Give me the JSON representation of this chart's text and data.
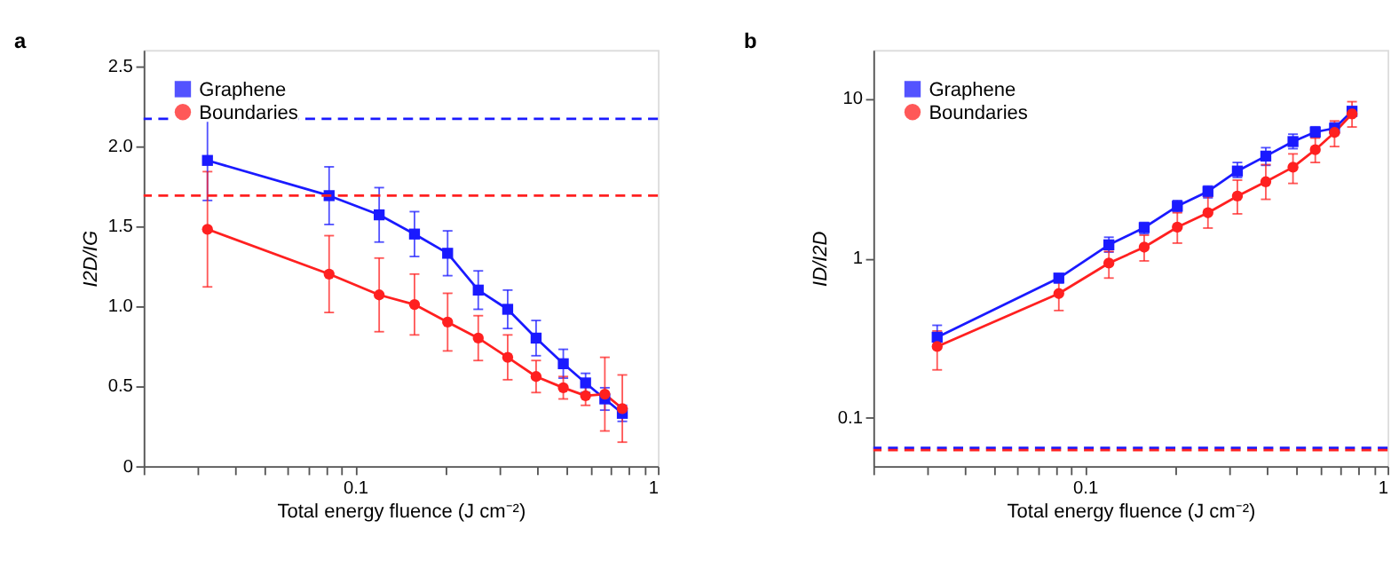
{
  "chart_data": [
    {
      "type": "line",
      "title": "a",
      "xlabel": "Total energy fluence (J cm⁻²)",
      "ylabel": "I2D/IG",
      "log": "x",
      "grid": false,
      "legend": "top left",
      "line_style": "solid",
      "x": [
        0.0325,
        0.082,
        0.12,
        0.157,
        0.202,
        0.255,
        0.319,
        0.396,
        0.487,
        0.577,
        0.668,
        0.763
      ],
      "xlim": [
        0.02,
        1
      ],
      "xticks": [
        {
          "value": 0.02,
          "label": null
        },
        {
          "value": 0.03,
          "label": null
        },
        {
          "value": 0.04,
          "label": null
        },
        {
          "value": 0.05,
          "label": null
        },
        {
          "value": 0.06,
          "label": null
        },
        {
          "value": 0.07,
          "label": null
        },
        {
          "value": 0.08,
          "label": null
        },
        {
          "value": 0.09,
          "label": null
        },
        0.1,
        {
          "value": 0.2,
          "label": null
        },
        {
          "value": 0.3,
          "label": null
        },
        {
          "value": 0.4,
          "label": null
        },
        {
          "value": 0.5,
          "label": null
        },
        {
          "value": 0.6,
          "label": null
        },
        {
          "value": 0.7,
          "label": null
        },
        {
          "value": 0.8,
          "label": null
        },
        {
          "value": 0.9,
          "label": null
        },
        1
      ],
      "ylim": [
        0,
        2.6
      ],
      "yticks": [
        0,
        0.5,
        {
          "value": 1,
          "label": "1.0"
        },
        1.5,
        {
          "value": 2,
          "label": "2.0"
        },
        2.5
      ],
      "series": [
        {
          "name": "Graphene",
          "color": "#1a1aff",
          "marker": "square",
          "values": [
            1.91,
            1.69,
            1.57,
            1.45,
            1.33,
            1.1,
            0.98,
            0.8,
            0.64,
            0.52,
            0.42,
            0.33
          ],
          "errors": [
            0.25,
            0.18,
            0.17,
            0.14,
            0.14,
            0.12,
            0.12,
            0.11,
            0.09,
            0.06,
            0.07,
            0.05
          ]
        },
        {
          "name": "Boundaries",
          "color": "#ff2020",
          "marker": "circle",
          "values": [
            1.48,
            1.2,
            1.07,
            1.01,
            0.9,
            0.8,
            0.68,
            0.56,
            0.49,
            0.44,
            0.45,
            0.36
          ],
          "errors": [
            0.36,
            0.24,
            0.23,
            0.19,
            0.18,
            0.14,
            0.14,
            0.1,
            0.07,
            0.06,
            0.23,
            0.21
          ]
        }
      ],
      "ref_lines": [
        {
          "axis": "y",
          "value": 2.17,
          "color": "#1a1aff",
          "line_style": "dashed"
        },
        {
          "axis": "y",
          "value": 1.69,
          "color": "#ff2020",
          "line_style": "dashed"
        }
      ]
    },
    {
      "type": "line",
      "title": "b",
      "xlabel": "Total energy fluence (J cm⁻²)",
      "ylabel": "ID/I2D",
      "log": "xy",
      "grid": false,
      "legend": "top left",
      "line_style": "solid",
      "x": [
        0.0325,
        0.082,
        0.12,
        0.157,
        0.202,
        0.255,
        0.319,
        0.396,
        0.487,
        0.577,
        0.668,
        0.763
      ],
      "xlim": [
        0.02,
        1
      ],
      "xticks": [
        {
          "value": 0.02,
          "label": null
        },
        {
          "value": 0.03,
          "label": null
        },
        {
          "value": 0.04,
          "label": null
        },
        {
          "value": 0.05,
          "label": null
        },
        {
          "value": 0.06,
          "label": null
        },
        {
          "value": 0.07,
          "label": null
        },
        {
          "value": 0.08,
          "label": null
        },
        {
          "value": 0.09,
          "label": null
        },
        0.1,
        {
          "value": 0.2,
          "label": null
        },
        {
          "value": 0.3,
          "label": null
        },
        {
          "value": 0.4,
          "label": null
        },
        {
          "value": 0.5,
          "label": null
        },
        {
          "value": 0.6,
          "label": null
        },
        {
          "value": 0.7,
          "label": null
        },
        {
          "value": 0.8,
          "label": null
        },
        {
          "value": 0.9,
          "label": null
        },
        1
      ],
      "ylim": [
        0.05,
        20
      ],
      "yticks": [
        0.1,
        1,
        10
      ],
      "series": [
        {
          "name": "Graphene",
          "color": "#1a1aff",
          "marker": "square",
          "values": [
            0.32,
            0.75,
            1.21,
            1.55,
            2.11,
            2.61,
            3.5,
            4.34,
            5.35,
            6.14,
            6.48,
            8.28
          ],
          "errors": [
            [
              0.28,
              0.38
            ],
            [
              0.7,
              0.79
            ],
            [
              1.09,
              1.35
            ],
            [
              1.42,
              1.67
            ],
            [
              1.95,
              2.29
            ],
            [
              2.38,
              2.82
            ],
            [
              3.19,
              3.96
            ],
            [
              3.8,
              4.9
            ],
            [
              4.83,
              5.95
            ],
            [
              5.68,
              6.62
            ],
            [
              6.0,
              7.0
            ],
            [
              7.7,
              8.8
            ]
          ]
        },
        {
          "name": "Boundaries",
          "color": "#ff2020",
          "marker": "circle",
          "values": [
            0.28,
            0.6,
            0.93,
            1.17,
            1.56,
            1.92,
            2.44,
            3.0,
            3.7,
            4.76,
            6.1,
            7.97
          ],
          "errors": [
            [
              0.2,
              0.35
            ],
            [
              0.47,
              0.71
            ],
            [
              0.75,
              1.1
            ],
            [
              0.96,
              1.39
            ],
            [
              1.24,
              1.92
            ],
            [
              1.54,
              2.42
            ],
            [
              1.89,
              3.07
            ],
            [
              2.33,
              3.84
            ],
            [
              2.93,
              4.48
            ],
            [
              3.96,
              5.63
            ],
            [
              4.98,
              7.2
            ],
            [
              6.6,
              9.5
            ]
          ]
        }
      ],
      "ref_lines": [
        {
          "axis": "y",
          "value": 0.065,
          "color": "#1a1aff",
          "line_style": "dashed"
        },
        {
          "axis": "y",
          "value": 0.063,
          "color": "#ff2020",
          "line_style": "dashed"
        }
      ]
    }
  ]
}
